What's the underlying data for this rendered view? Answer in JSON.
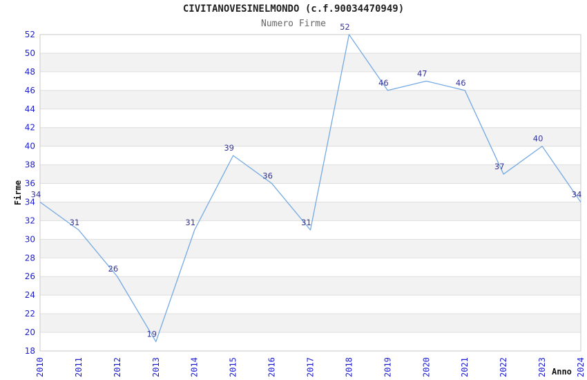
{
  "chart_data": {
    "type": "line",
    "title": "CIVITANOVESINELMONDO (c.f.90034470949)",
    "subtitle": "Numero Firme",
    "xlabel": "Anno",
    "ylabel": "Firme",
    "categories": [
      "2010",
      "2011",
      "2012",
      "2013",
      "2014",
      "2015",
      "2016",
      "2017",
      "2018",
      "2019",
      "2020",
      "2021",
      "2022",
      "2023",
      "2024"
    ],
    "series": [
      {
        "name": "Numero Firme",
        "values": [
          34,
          31,
          26,
          19,
          31,
          39,
          36,
          31,
          52,
          46,
          47,
          46,
          37,
          40,
          34
        ]
      }
    ],
    "ylim": [
      18,
      52
    ],
    "ytick_step": 2,
    "grid": "horizontal",
    "legend": "none",
    "band_fill": "alternating horizontal stripes",
    "colors": {
      "line": "#74a9e2",
      "tick_labels": "#1a1ad1",
      "data_labels": "#333399",
      "band": "#f2f2f2",
      "grid_line": "#dedede",
      "plot_border": "#c9c9c9",
      "title": "#1f1f1f",
      "subtitle": "#666666",
      "axis_title": "#111111"
    }
  }
}
